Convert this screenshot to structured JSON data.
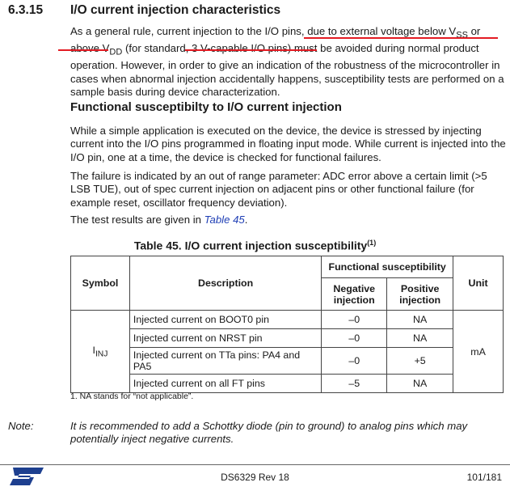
{
  "section": {
    "number": "6.3.15",
    "title": "I/O current injection characteristics"
  },
  "p1": {
    "a": "As a general rule, current injection to the I/O pins, due to external voltage below V",
    "a_sub": "SS",
    "b": " or above V",
    "b_sub": "DD",
    "c": " (for standard, 3 V-capable I/O pins) must be avoided during normal product operation. However, in order to give an indication of the robustness of the microcontroller in cases when abnormal injection accidentally happens, susceptibility tests are performed on a sample basis during device characterization."
  },
  "subheading": "Functional susceptibilty to I/O current injection",
  "p2": "While a simple application is executed on the device, the device is stressed by injecting current into the I/O pins programmed in floating input mode. While current is injected into the I/O pin, one at a time, the device is checked for functional failures.",
  "p3": "The failure is indicated by an out of range parameter: ADC error above a certain limit (>5 LSB TUE), out of spec current injection on adjacent pins or other functional failure (for example reset, oscillator frequency deviation).",
  "p4": {
    "pre": "The test results are given in ",
    "link": "Table 45",
    "post": "."
  },
  "table": {
    "title": "Table 45. I/O current injection susceptibility",
    "title_sup": "(1)",
    "headers": {
      "symbol": "Symbol",
      "description": "Description",
      "group": "Functional susceptibility",
      "negative": "Negative injection",
      "positive": "Positive injection",
      "unit": "Unit"
    },
    "symbol": "I",
    "symbol_sub": "INJ",
    "unit": "mA",
    "rows": [
      {
        "description": "Injected current on BOOT0 pin",
        "negative": "–0",
        "positive": "NA"
      },
      {
        "description": "Injected current on NRST pin",
        "negative": "–0",
        "positive": "NA"
      },
      {
        "description": "Injected current on TTa pins: PA4 and PA5",
        "negative": "–0",
        "positive": "+5"
      },
      {
        "description": "Injected current on all FT pins",
        "negative": "–5",
        "positive": "NA"
      }
    ],
    "footnote": "1.   NA stands for “not applicable”."
  },
  "note": {
    "label": "Note:",
    "text": "It is recommended to add a Schottky diode (pin to ground) to analog pins which may potentially inject negative currents."
  },
  "footer": {
    "doc": "DS6329 Rev 18",
    "page": "101/181",
    "logo": "ST"
  },
  "colors": {
    "highlight": "#e31b23",
    "link": "#1f3fb5",
    "logo": "#1d3f8f"
  }
}
